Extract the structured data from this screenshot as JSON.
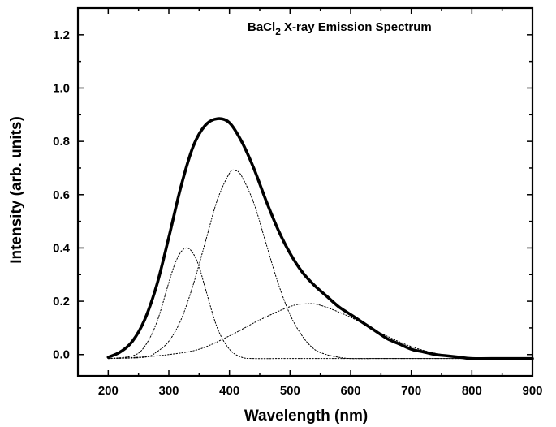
{
  "chart_data": {
    "type": "line",
    "title": "BaCl₂ X-ray Emission Spectrum",
    "title_main": "BaCl",
    "title_sub": "2",
    "title_rest": " X-ray Emission Spectrum",
    "xlabel": "Wavelength (nm)",
    "ylabel": "Intensity (arb. units)",
    "xlim": [
      150,
      900
    ],
    "ylim": [
      -0.08,
      1.3
    ],
    "xticks": [
      200,
      300,
      400,
      500,
      600,
      700,
      800,
      900
    ],
    "yticks": [
      0.0,
      0.2,
      0.4,
      0.6,
      0.8,
      1.0,
      1.2
    ],
    "ytick_labels": [
      "0.0",
      "0.2",
      "0.4",
      "0.6",
      "0.8",
      "1.0",
      "1.2"
    ],
    "grid": false,
    "series": [
      {
        "style": "solid-thick",
        "x": [
          200,
          220,
          240,
          260,
          280,
          300,
          320,
          340,
          360,
          380,
          400,
          420,
          440,
          460,
          480,
          500,
          520,
          540,
          560,
          580,
          600,
          620,
          640,
          660,
          680,
          700,
          720,
          740,
          760,
          780,
          800,
          850,
          900
        ],
        "y": [
          -0.01,
          0.01,
          0.05,
          0.13,
          0.26,
          0.44,
          0.63,
          0.78,
          0.86,
          0.885,
          0.87,
          0.8,
          0.7,
          0.58,
          0.47,
          0.38,
          0.31,
          0.26,
          0.22,
          0.18,
          0.15,
          0.12,
          0.09,
          0.06,
          0.04,
          0.02,
          0.01,
          0.0,
          -0.005,
          -0.01,
          -0.015,
          -0.015,
          -0.015
        ]
      },
      {
        "style": "dotted",
        "x": [
          200,
          240,
          260,
          280,
          300,
          310,
          320,
          330,
          340,
          350,
          360,
          380,
          400,
          420,
          440,
          480,
          520,
          600,
          700,
          800
        ],
        "y": [
          -0.015,
          -0.005,
          0.03,
          0.12,
          0.27,
          0.34,
          0.385,
          0.4,
          0.38,
          0.33,
          0.25,
          0.1,
          0.02,
          -0.01,
          -0.015,
          -0.015,
          -0.015,
          -0.015,
          -0.015,
          -0.015
        ]
      },
      {
        "style": "dotted",
        "x": [
          200,
          260,
          280,
          300,
          320,
          340,
          360,
          380,
          400,
          410,
          420,
          440,
          460,
          480,
          500,
          520,
          540,
          560,
          580,
          600,
          640,
          700,
          800
        ],
        "y": [
          -0.015,
          -0.01,
          0.01,
          0.05,
          0.13,
          0.26,
          0.42,
          0.58,
          0.68,
          0.69,
          0.67,
          0.57,
          0.42,
          0.27,
          0.15,
          0.07,
          0.02,
          0.0,
          -0.01,
          -0.015,
          -0.015,
          -0.015,
          -0.015
        ]
      },
      {
        "style": "dotted",
        "x": [
          200,
          250,
          300,
          350,
          400,
          450,
          500,
          525,
          550,
          600,
          650,
          700,
          750,
          800
        ],
        "y": [
          -0.015,
          -0.01,
          0.0,
          0.02,
          0.07,
          0.13,
          0.18,
          0.19,
          0.185,
          0.14,
          0.08,
          0.03,
          0.0,
          -0.015
        ]
      }
    ]
  }
}
